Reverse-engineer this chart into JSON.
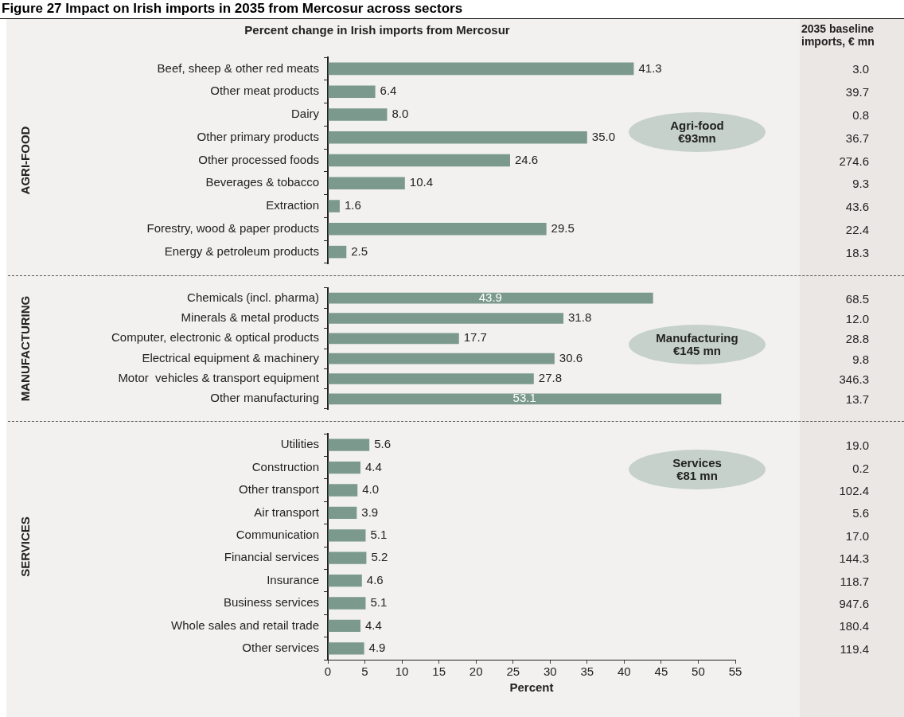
{
  "chart_data": [
    {
      "type": "bar",
      "orientation": "horizontal",
      "title": "Figure 27 Impact on Irish imports in 2035 from Mercosur across sectors",
      "subtitle": "Percent change in Irish imports from Mercosur",
      "ylabel": "AGRI-FOOD",
      "categories": [
        "Beef, sheep & other red meats",
        "Other meat products",
        "Dairy",
        "Other primary products",
        "Other processed foods",
        "Beverages & tobacco",
        "Extraction",
        "Forestry, wood & paper products",
        "Energy & petroleum products"
      ],
      "values": [
        41.3,
        6.4,
        8.0,
        35.0,
        24.6,
        10.4,
        1.6,
        29.5,
        2.5
      ],
      "value_labels": [
        "41.3",
        "6.4",
        "8.0",
        "35.0",
        "24.6",
        "10.4",
        "1.6",
        "29.5",
        "2.5"
      ],
      "color": "#7b9a8d",
      "xlim": [
        0,
        55
      ],
      "xticks": [
        0,
        5,
        10,
        15,
        20,
        25,
        30,
        35,
        40,
        45,
        50,
        55
      ],
      "tick_labels": "y",
      "grid": false,
      "annotations": [
        "2035 baseline imports, € mn",
        "Agri-food\n€93mn",
        "3.0",
        "39.7",
        "0.8",
        "36.7",
        "274.6",
        "9.3",
        "43.6",
        "22.4",
        "18.3"
      ]
    },
    {
      "type": "bar",
      "orientation": "horizontal",
      "ylabel": "MANUFACTURING",
      "categories": [
        "Chemicals (incl. pharma)",
        "Minerals & metal products",
        "Computer, electronic & optical products",
        "Electrical equipment & machinery",
        "Motor  vehicles & transport equipment",
        "Other manufacturing"
      ],
      "values": [
        43.9,
        31.8,
        17.7,
        30.6,
        27.8,
        53.1
      ],
      "value_labels": [
        "43.9",
        "31.8",
        "17.7",
        "30.6",
        "27.8",
        "53.1"
      ],
      "color": "#7b9a8d",
      "xlim": [
        0,
        55
      ],
      "xticks": [
        0,
        5,
        10,
        15,
        20,
        25,
        30,
        35,
        40,
        45,
        50,
        55
      ],
      "tick_labels": "y",
      "grid": false,
      "annotations": [
        "Manufacturing\n€145 mn",
        "68.5",
        "12.0",
        "28.8",
        "9.8",
        "346.3",
        "13.7"
      ]
    },
    {
      "type": "bar",
      "orientation": "horizontal",
      "ylabel": "SERVICES",
      "xlabel": "Percent",
      "categories": [
        "Utilities",
        "Construction",
        "Other transport",
        "Air transport",
        "Communication",
        "Financial services",
        "Insurance",
        "Business services",
        "Whole sales and retail trade",
        "Other services"
      ],
      "values": [
        5.6,
        4.4,
        4.0,
        3.9,
        5.1,
        5.2,
        4.6,
        5.1,
        4.4,
        4.9
      ],
      "value_labels": [
        "5.6",
        "4.4",
        "4.0",
        "3.9",
        "5.1",
        "5.2",
        "4.6",
        "5.1",
        "4.4",
        "4.9"
      ],
      "color": "#7b9a8d",
      "xlim": [
        0,
        55
      ],
      "xticks": [
        0,
        5,
        10,
        15,
        20,
        25,
        30,
        35,
        40,
        45,
        50,
        55
      ],
      "grid": false,
      "annotations": [
        "Services\n€81 mn",
        "19.0",
        "0.2",
        "102.4",
        "5.6",
        "17.0",
        "144.3",
        "118.7",
        "947.6",
        "180.4",
        "119.4"
      ]
    }
  ]
}
